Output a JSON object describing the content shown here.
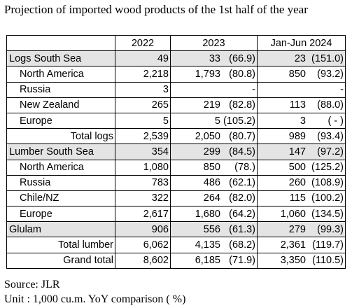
{
  "title": "Projection of imported wood products of the 1st half of the year",
  "table": {
    "headers": [
      "",
      "2022",
      "2023",
      "Jan-Jun 2024"
    ],
    "rows": [
      {
        "label": "Logs  South Sea",
        "v2022": "49",
        "v2023": "33",
        "p2023": "(66.9)",
        "v2024": "23",
        "p2024": "(151.0)"
      },
      {
        "label": "North America",
        "v2022": "2,218",
        "v2023": "1,793",
        "p2023": "(80.8)",
        "v2024": "850",
        "p2024": "(93.2)"
      },
      {
        "label": "Russia",
        "v2022": "3",
        "v2023": "",
        "p2023": "-",
        "v2024": "",
        "p2024": "-"
      },
      {
        "label": "New Zealand",
        "v2022": "265",
        "v2023": "219",
        "p2023": "(82.8)",
        "v2024": "113",
        "p2024": "(88.0)"
      },
      {
        "label": "Europe",
        "v2022": "5",
        "v2023": "5",
        "p2023": "(105.2)",
        "v2024": "3",
        "p2024": "( - )"
      },
      {
        "label": "Total logs",
        "v2022": "2,539",
        "v2023": "2,050",
        "p2023": "(80.7)",
        "v2024": "989",
        "p2024": "(93.4)"
      },
      {
        "label": "Lumber  South Sea",
        "v2022": "354",
        "v2023": "299",
        "p2023": "(84.5)",
        "v2024": "147",
        "p2024": "(97.2)"
      },
      {
        "label": "North America",
        "v2022": "1,080",
        "v2023": "850",
        "p2023": "(78.)",
        "v2024": "500",
        "p2024": "(125.2)"
      },
      {
        "label": "Russia",
        "v2022": "783",
        "v2023": "486",
        "p2023": "(62.1)",
        "v2024": "260",
        "p2024": "(108.9)"
      },
      {
        "label": "Chile/NZ",
        "v2022": "322",
        "v2023": "264",
        "p2023": "(82.0)",
        "v2024": "115",
        "p2024": "(100.2)"
      },
      {
        "label": "Europe",
        "v2022": "2,617",
        "v2023": "1,680",
        "p2023": "(64.2)",
        "v2024": "1,060",
        "p2024": "(134.5)"
      },
      {
        "label": "Glulam",
        "v2022": "906",
        "v2023": "556",
        "p2023": "(61.3)",
        "v2024": "279",
        "p2024": "(99.3)"
      },
      {
        "label": "Total lumber",
        "v2022": "6,062",
        "v2023": "4,135",
        "p2023": "(68.2)",
        "v2024": "2,361",
        "p2024": "(119.7)"
      },
      {
        "label": "Grand total",
        "v2022": "8,602",
        "v2023": "6,185",
        "p2023": "(71.9)",
        "v2024": "3,350",
        "p2024": "(110.5)"
      }
    ]
  },
  "source": "Source: JLR",
  "unit": "Unit : 1,000 cu.m. YoY comparison ( %)"
}
